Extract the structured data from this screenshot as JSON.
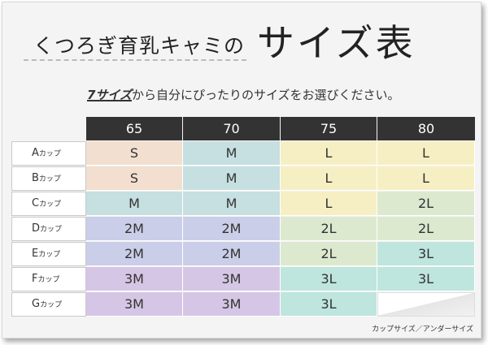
{
  "title": {
    "small": "くつろぎ育乳キャミの",
    "big": "サイズ表"
  },
  "subtitle": {
    "emphasis": "7サイズ",
    "rest": "から自分にぴったりのサイズをお選びください。"
  },
  "table": {
    "columns": [
      "65",
      "70",
      "75",
      "80"
    ],
    "rows": [
      {
        "cup": "A",
        "suffix": "カップ",
        "values": [
          "S",
          "M",
          "L",
          "L"
        ]
      },
      {
        "cup": "B",
        "suffix": "カップ",
        "values": [
          "S",
          "M",
          "L",
          "L"
        ]
      },
      {
        "cup": "C",
        "suffix": "カップ",
        "values": [
          "M",
          "M",
          "L",
          "2L"
        ]
      },
      {
        "cup": "D",
        "suffix": "カップ",
        "values": [
          "2M",
          "2M",
          "2L",
          "2L"
        ]
      },
      {
        "cup": "E",
        "suffix": "カップ",
        "values": [
          "2M",
          "2M",
          "2L",
          "3L"
        ]
      },
      {
        "cup": "F",
        "suffix": "カップ",
        "values": [
          "3M",
          "3M",
          "3L",
          "3L"
        ]
      },
      {
        "cup": "G",
        "suffix": "カップ",
        "values": [
          "3M",
          "3M",
          "3L",
          ""
        ]
      }
    ]
  },
  "size_colors": {
    "S": "#f3dfcf",
    "M": "#c6dfe1",
    "L": "#f7efc4",
    "2L": "#dce9cf",
    "2M": "#cbcee8",
    "3L": "#bee5de",
    "3M": "#d6c6e5"
  },
  "header_color": "#333333",
  "footnote": "カップサイズ／アンダーサイズ"
}
